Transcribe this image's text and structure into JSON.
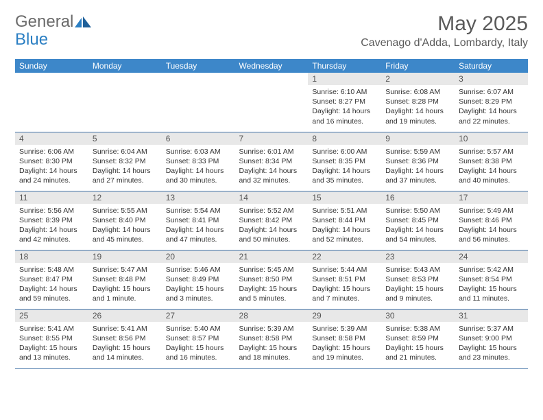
{
  "logo": {
    "text_gray": "General",
    "text_blue": "Blue"
  },
  "title": "May 2025",
  "location": "Cavenago d'Adda, Lombardy, Italy",
  "colors": {
    "header_bg": "#3d87c9",
    "header_text": "#ffffff",
    "daynum_bg": "#e8e8e8",
    "row_border": "#3d6fa5",
    "logo_gray": "#6b6b6b",
    "logo_blue": "#2b7fc3",
    "title_text": "#5a5a5a",
    "body_text": "#333333"
  },
  "weekdays": [
    "Sunday",
    "Monday",
    "Tuesday",
    "Wednesday",
    "Thursday",
    "Friday",
    "Saturday"
  ],
  "weeks": [
    [
      null,
      null,
      null,
      null,
      {
        "n": "1",
        "sr": "6:10 AM",
        "ss": "8:27 PM",
        "dl": "14 hours and 16 minutes."
      },
      {
        "n": "2",
        "sr": "6:08 AM",
        "ss": "8:28 PM",
        "dl": "14 hours and 19 minutes."
      },
      {
        "n": "3",
        "sr": "6:07 AM",
        "ss": "8:29 PM",
        "dl": "14 hours and 22 minutes."
      }
    ],
    [
      {
        "n": "4",
        "sr": "6:06 AM",
        "ss": "8:30 PM",
        "dl": "14 hours and 24 minutes."
      },
      {
        "n": "5",
        "sr": "6:04 AM",
        "ss": "8:32 PM",
        "dl": "14 hours and 27 minutes."
      },
      {
        "n": "6",
        "sr": "6:03 AM",
        "ss": "8:33 PM",
        "dl": "14 hours and 30 minutes."
      },
      {
        "n": "7",
        "sr": "6:01 AM",
        "ss": "8:34 PM",
        "dl": "14 hours and 32 minutes."
      },
      {
        "n": "8",
        "sr": "6:00 AM",
        "ss": "8:35 PM",
        "dl": "14 hours and 35 minutes."
      },
      {
        "n": "9",
        "sr": "5:59 AM",
        "ss": "8:36 PM",
        "dl": "14 hours and 37 minutes."
      },
      {
        "n": "10",
        "sr": "5:57 AM",
        "ss": "8:38 PM",
        "dl": "14 hours and 40 minutes."
      }
    ],
    [
      {
        "n": "11",
        "sr": "5:56 AM",
        "ss": "8:39 PM",
        "dl": "14 hours and 42 minutes."
      },
      {
        "n": "12",
        "sr": "5:55 AM",
        "ss": "8:40 PM",
        "dl": "14 hours and 45 minutes."
      },
      {
        "n": "13",
        "sr": "5:54 AM",
        "ss": "8:41 PM",
        "dl": "14 hours and 47 minutes."
      },
      {
        "n": "14",
        "sr": "5:52 AM",
        "ss": "8:42 PM",
        "dl": "14 hours and 50 minutes."
      },
      {
        "n": "15",
        "sr": "5:51 AM",
        "ss": "8:44 PM",
        "dl": "14 hours and 52 minutes."
      },
      {
        "n": "16",
        "sr": "5:50 AM",
        "ss": "8:45 PM",
        "dl": "14 hours and 54 minutes."
      },
      {
        "n": "17",
        "sr": "5:49 AM",
        "ss": "8:46 PM",
        "dl": "14 hours and 56 minutes."
      }
    ],
    [
      {
        "n": "18",
        "sr": "5:48 AM",
        "ss": "8:47 PM",
        "dl": "14 hours and 59 minutes."
      },
      {
        "n": "19",
        "sr": "5:47 AM",
        "ss": "8:48 PM",
        "dl": "15 hours and 1 minute."
      },
      {
        "n": "20",
        "sr": "5:46 AM",
        "ss": "8:49 PM",
        "dl": "15 hours and 3 minutes."
      },
      {
        "n": "21",
        "sr": "5:45 AM",
        "ss": "8:50 PM",
        "dl": "15 hours and 5 minutes."
      },
      {
        "n": "22",
        "sr": "5:44 AM",
        "ss": "8:51 PM",
        "dl": "15 hours and 7 minutes."
      },
      {
        "n": "23",
        "sr": "5:43 AM",
        "ss": "8:53 PM",
        "dl": "15 hours and 9 minutes."
      },
      {
        "n": "24",
        "sr": "5:42 AM",
        "ss": "8:54 PM",
        "dl": "15 hours and 11 minutes."
      }
    ],
    [
      {
        "n": "25",
        "sr": "5:41 AM",
        "ss": "8:55 PM",
        "dl": "15 hours and 13 minutes."
      },
      {
        "n": "26",
        "sr": "5:41 AM",
        "ss": "8:56 PM",
        "dl": "15 hours and 14 minutes."
      },
      {
        "n": "27",
        "sr": "5:40 AM",
        "ss": "8:57 PM",
        "dl": "15 hours and 16 minutes."
      },
      {
        "n": "28",
        "sr": "5:39 AM",
        "ss": "8:58 PM",
        "dl": "15 hours and 18 minutes."
      },
      {
        "n": "29",
        "sr": "5:39 AM",
        "ss": "8:58 PM",
        "dl": "15 hours and 19 minutes."
      },
      {
        "n": "30",
        "sr": "5:38 AM",
        "ss": "8:59 PM",
        "dl": "15 hours and 21 minutes."
      },
      {
        "n": "31",
        "sr": "5:37 AM",
        "ss": "9:00 PM",
        "dl": "15 hours and 23 minutes."
      }
    ]
  ],
  "labels": {
    "sunrise": "Sunrise:",
    "sunset": "Sunset:",
    "daylight": "Daylight:"
  }
}
